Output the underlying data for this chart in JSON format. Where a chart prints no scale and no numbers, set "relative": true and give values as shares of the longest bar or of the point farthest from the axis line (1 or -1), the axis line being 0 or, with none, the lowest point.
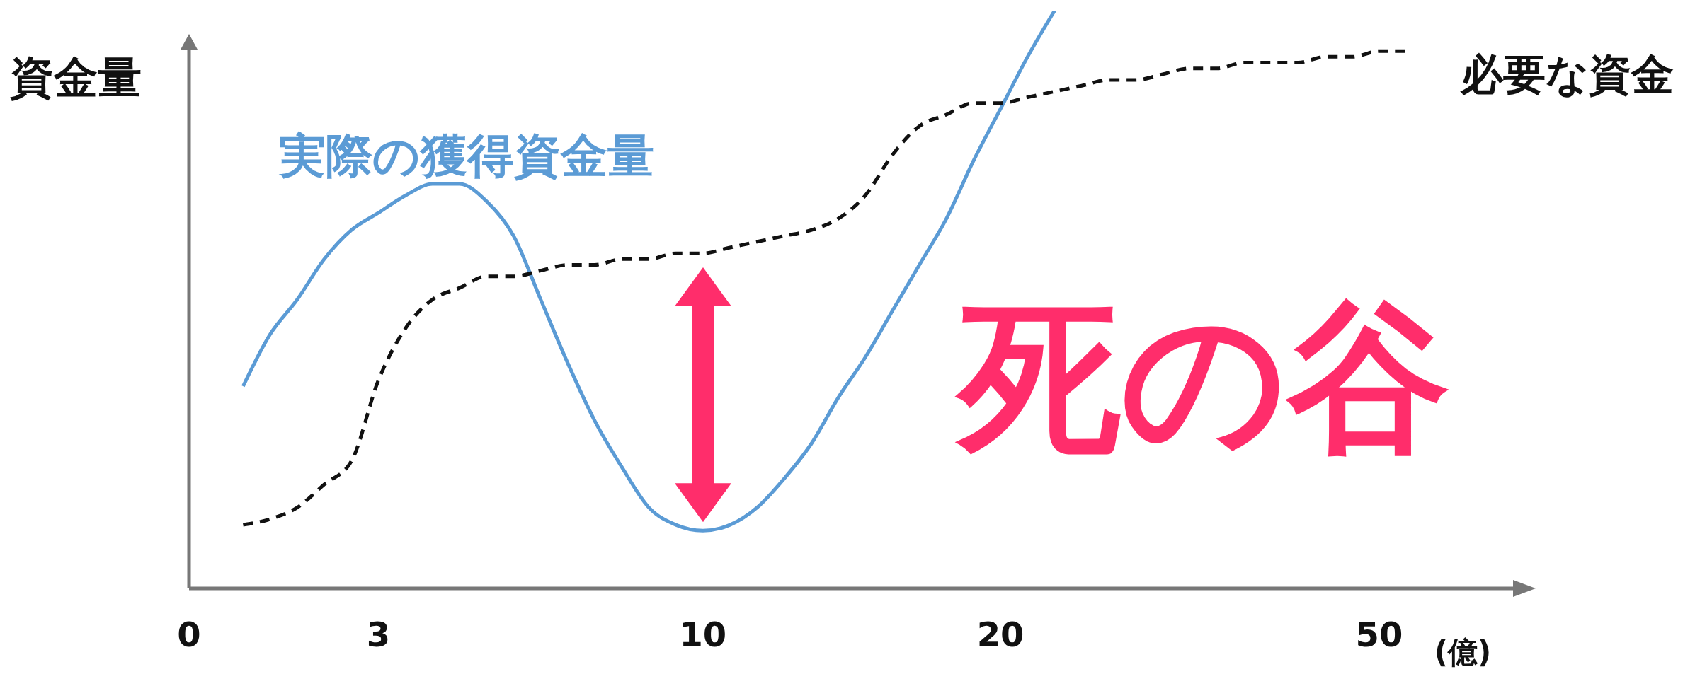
{
  "chart_data": {
    "type": "line",
    "relative": true,
    "ylabel": "資金量",
    "xlabel": "(億)",
    "annotations": [
      "死の谷"
    ],
    "categories": [
      "0",
      null,
      null,
      null,
      null,
      null,
      null,
      "3",
      null,
      null,
      null,
      null,
      null,
      null,
      null,
      null,
      null,
      null,
      null,
      "10",
      null,
      null,
      null,
      null,
      null,
      null,
      null,
      null,
      null,
      null,
      "20",
      null,
      null,
      null,
      null,
      null,
      null,
      null,
      null,
      null,
      null,
      null,
      null,
      null,
      "50",
      null,
      null,
      null,
      null,
      null
    ],
    "series": [
      {
        "name": "実際の獲得資金量",
        "color": "#5b9bd5",
        "line_style": "solid",
        "values": [
          null,
          null,
          0.35,
          0.44,
          0.5,
          0.57,
          0.62,
          0.65,
          0.68,
          0.7,
          0.7,
          0.67,
          0.61,
          0.5,
          0.39,
          0.29,
          0.21,
          0.14,
          0.11,
          0.1,
          0.11,
          0.14,
          0.19,
          0.25,
          0.33,
          0.4,
          0.48,
          0.56,
          0.64,
          0.74,
          0.83,
          0.92,
          1.0,
          null,
          null,
          null,
          null,
          null,
          null,
          null,
          null,
          null,
          null,
          null,
          null,
          null,
          null,
          null,
          null,
          null
        ]
      },
      {
        "name": "必要な資金",
        "color": "#111111",
        "line_style": "dashed",
        "values": [
          null,
          null,
          0.11,
          0.12,
          0.14,
          0.18,
          0.22,
          0.36,
          0.45,
          0.5,
          0.52,
          0.54,
          0.54,
          0.55,
          0.56,
          0.56,
          0.57,
          0.57,
          0.58,
          0.58,
          0.59,
          0.6,
          0.61,
          0.62,
          0.64,
          0.68,
          0.75,
          0.8,
          0.82,
          0.84,
          0.84,
          0.85,
          0.86,
          0.87,
          0.88,
          0.88,
          0.89,
          0.9,
          0.9,
          0.91,
          0.91,
          0.91,
          0.92,
          0.92,
          0.93,
          0.93,
          null,
          null,
          null,
          null
        ]
      }
    ]
  }
}
